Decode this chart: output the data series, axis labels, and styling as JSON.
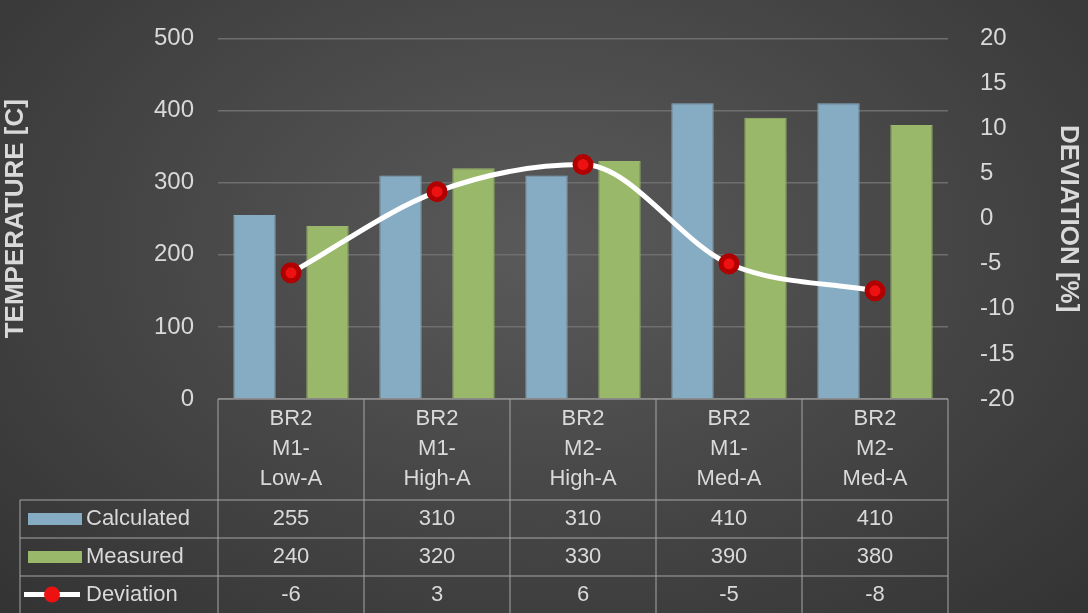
{
  "chart_data": {
    "type": "bar",
    "categories": [
      "BR2 M1-Low-A",
      "BR2 M1-High-A",
      "BR2 M2-High-A",
      "BR2 M1-Med-A",
      "BR2 M2-Med-A"
    ],
    "series": [
      {
        "name": "Calculated",
        "color": "#86acc4",
        "values": [
          255,
          310,
          310,
          410,
          410
        ]
      },
      {
        "name": "Measured",
        "color": "#9ab86a",
        "values": [
          240,
          320,
          330,
          390,
          380
        ]
      },
      {
        "name": "Deviation",
        "type": "line",
        "axis": "y2",
        "color": "#ffffff",
        "values": [
          -6,
          3,
          6,
          -5,
          -8
        ]
      }
    ],
    "ylabel": "TEMPERATURE [C]",
    "y2label": "DEVIATION [%]",
    "ylim": [
      0,
      500
    ],
    "yticks": [
      0,
      100,
      200,
      300,
      400,
      500
    ],
    "y2lim": [
      -20,
      20
    ],
    "y2ticks": [
      -20,
      -15,
      -10,
      -5,
      0,
      5,
      10,
      15,
      20
    ],
    "grid": "y",
    "legend": "bottom",
    "data_labels": true,
    "marker": "circle"
  }
}
